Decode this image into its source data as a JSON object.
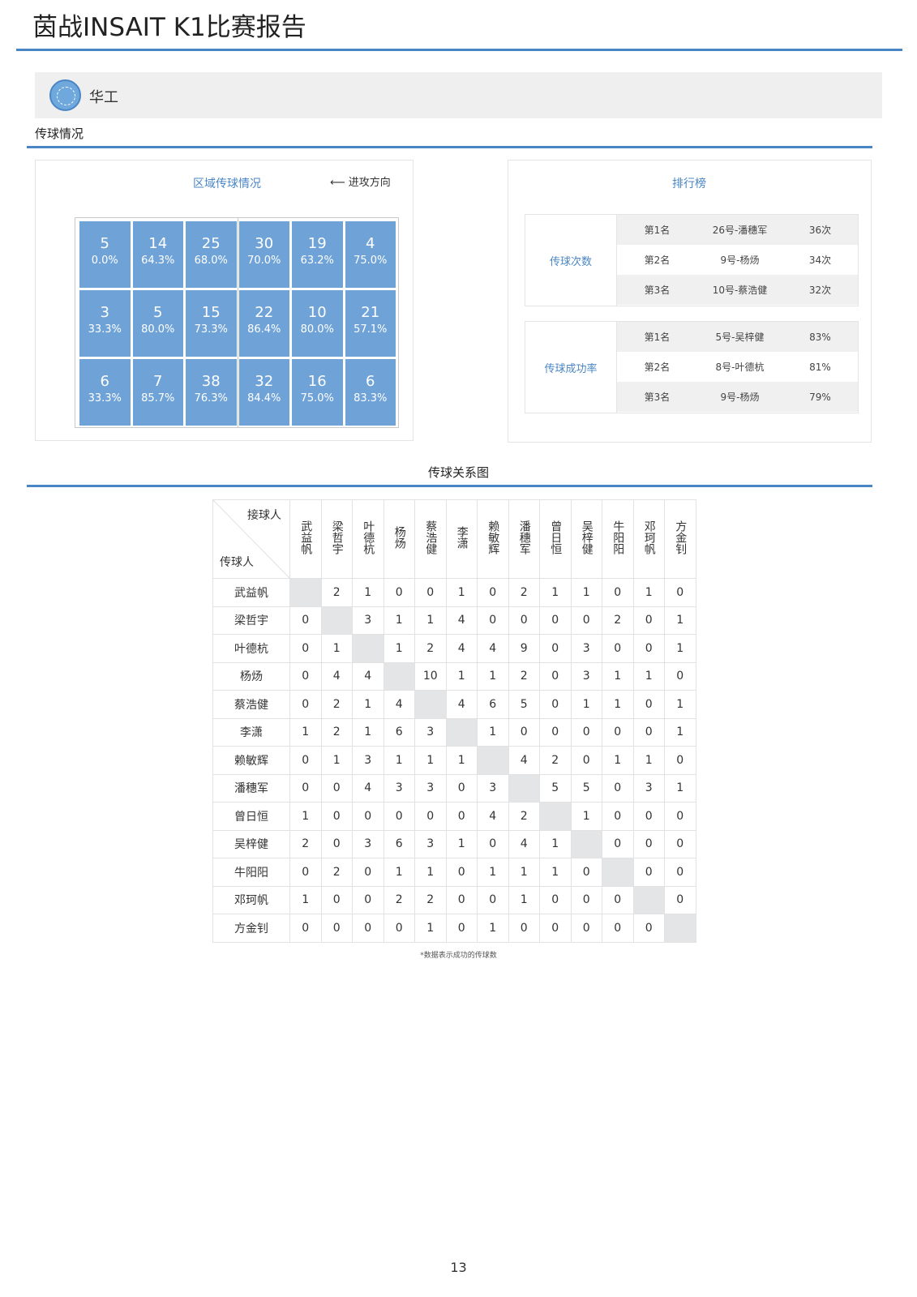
{
  "doc_title": "茵战INSAIT K1比赛报告",
  "team": {
    "name": "华工"
  },
  "sections": {
    "passing": "传球情况",
    "relation": "传球关系图"
  },
  "zone_panel": {
    "title": "区域传球情况",
    "direction": "⟵ 进攻方向",
    "zones": [
      {
        "count": "5",
        "pct": "0.0%"
      },
      {
        "count": "14",
        "pct": "64.3%"
      },
      {
        "count": "25",
        "pct": "68.0%"
      },
      {
        "count": "30",
        "pct": "70.0%"
      },
      {
        "count": "19",
        "pct": "63.2%"
      },
      {
        "count": "4",
        "pct": "75.0%"
      },
      {
        "count": "3",
        "pct": "33.3%"
      },
      {
        "count": "5",
        "pct": "80.0%"
      },
      {
        "count": "15",
        "pct": "73.3%"
      },
      {
        "count": "22",
        "pct": "86.4%"
      },
      {
        "count": "10",
        "pct": "80.0%"
      },
      {
        "count": "21",
        "pct": "57.1%"
      },
      {
        "count": "6",
        "pct": "33.3%"
      },
      {
        "count": "7",
        "pct": "85.7%"
      },
      {
        "count": "38",
        "pct": "76.3%"
      },
      {
        "count": "32",
        "pct": "84.4%"
      },
      {
        "count": "16",
        "pct": "75.0%"
      },
      {
        "count": "6",
        "pct": "83.3%"
      }
    ]
  },
  "ranking": {
    "title": "排行榜",
    "categories": [
      {
        "label": "传球次数",
        "rows": [
          {
            "rank": "第1名",
            "player": "26号-潘穗军",
            "value": "36次"
          },
          {
            "rank": "第2名",
            "player": "9号-杨炀",
            "value": "34次"
          },
          {
            "rank": "第3名",
            "player": "10号-蔡浩健",
            "value": "32次"
          }
        ]
      },
      {
        "label": "传球成功率",
        "rows": [
          {
            "rank": "第1名",
            "player": "5号-吴梓健",
            "value": "83%"
          },
          {
            "rank": "第2名",
            "player": "8号-叶德杭",
            "value": "81%"
          },
          {
            "rank": "第3名",
            "player": "9号-杨炀",
            "value": "79%"
          }
        ]
      }
    ]
  },
  "matrix": {
    "receiver_label": "接球人",
    "passer_label": "传球人",
    "players": [
      "武益帆",
      "梁哲宇",
      "叶德杭",
      "杨炀",
      "蔡浩健",
      "李潇",
      "赖敏辉",
      "潘穗军",
      "曾日恒",
      "吴梓健",
      "牛阳阳",
      "邓珂帆",
      "方金钊"
    ],
    "values": [
      [
        "",
        "2",
        "1",
        "0",
        "0",
        "1",
        "0",
        "2",
        "1",
        "1",
        "0",
        "1",
        "0"
      ],
      [
        "0",
        "",
        "3",
        "1",
        "1",
        "4",
        "0",
        "0",
        "0",
        "0",
        "2",
        "0",
        "1"
      ],
      [
        "0",
        "1",
        "",
        "1",
        "2",
        "4",
        "4",
        "9",
        "0",
        "3",
        "0",
        "0",
        "1"
      ],
      [
        "0",
        "4",
        "4",
        "",
        "10",
        "1",
        "1",
        "2",
        "0",
        "3",
        "1",
        "1",
        "0"
      ],
      [
        "0",
        "2",
        "1",
        "4",
        "",
        "4",
        "6",
        "5",
        "0",
        "1",
        "1",
        "0",
        "1"
      ],
      [
        "1",
        "2",
        "1",
        "6",
        "3",
        "",
        "1",
        "0",
        "0",
        "0",
        "0",
        "0",
        "1"
      ],
      [
        "0",
        "1",
        "3",
        "1",
        "1",
        "1",
        "",
        "4",
        "2",
        "0",
        "1",
        "1",
        "0"
      ],
      [
        "0",
        "0",
        "4",
        "3",
        "3",
        "0",
        "3",
        "",
        "5",
        "5",
        "0",
        "3",
        "1"
      ],
      [
        "1",
        "0",
        "0",
        "0",
        "0",
        "0",
        "4",
        "2",
        "",
        "1",
        "0",
        "0",
        "0"
      ],
      [
        "2",
        "0",
        "3",
        "6",
        "3",
        "1",
        "0",
        "4",
        "1",
        "",
        "0",
        "0",
        "0"
      ],
      [
        "0",
        "2",
        "0",
        "1",
        "1",
        "0",
        "1",
        "1",
        "1",
        "0",
        "",
        "0",
        "0"
      ],
      [
        "1",
        "0",
        "0",
        "2",
        "2",
        "0",
        "0",
        "1",
        "0",
        "0",
        "0",
        "",
        "0"
      ],
      [
        "0",
        "0",
        "0",
        "0",
        "1",
        "0",
        "1",
        "0",
        "0",
        "0",
        "0",
        "0",
        ""
      ]
    ]
  },
  "footnote": "*数据表示成功的传球数",
  "page_number": "13",
  "colors": {
    "accent": "#4a86c5",
    "zone_fill": "#6fa3d8",
    "shade": "#f0f0f0"
  }
}
